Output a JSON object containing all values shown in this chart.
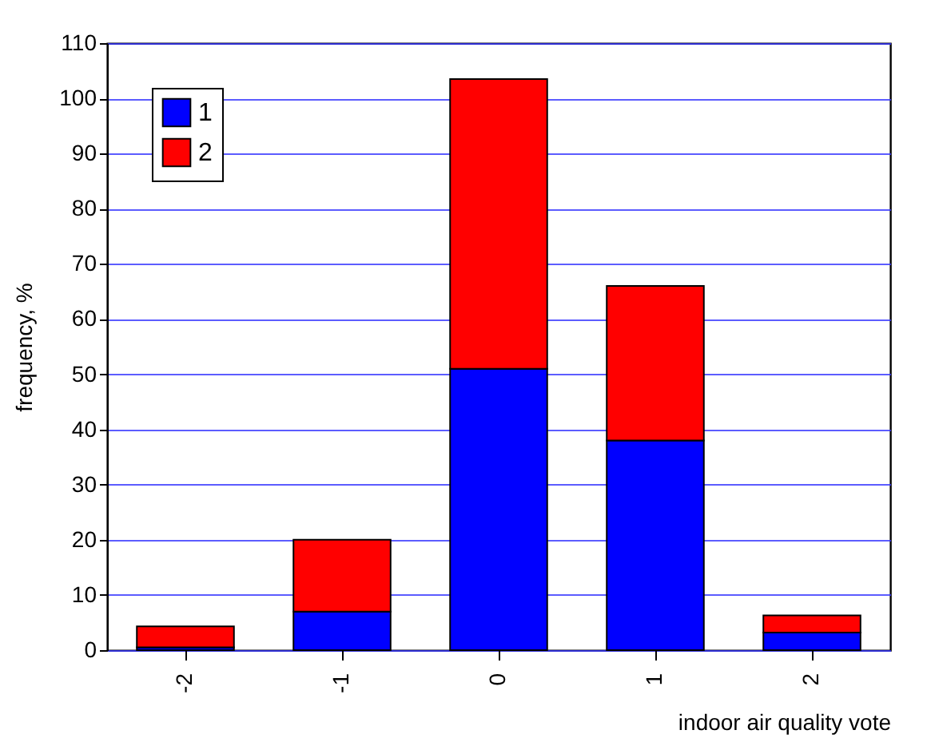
{
  "chart_data": {
    "type": "bar",
    "stacked": true,
    "xlabel": "indoor air quality vote",
    "ylabel": "frequency, %",
    "categories": [
      "-2",
      "-1",
      "0",
      "1",
      "2"
    ],
    "series": [
      {
        "name": "1",
        "color": "#0000ff",
        "values": [
          0.5,
          7,
          51,
          38,
          3.2
        ]
      },
      {
        "name": "2",
        "color": "#ff0000",
        "values": [
          3.8,
          13,
          52.5,
          28,
          3.1
        ]
      }
    ],
    "ylim": [
      0,
      110
    ],
    "yticks": [
      0,
      10,
      20,
      30,
      40,
      50,
      60,
      70,
      80,
      90,
      100,
      110
    ],
    "grid": "y",
    "legend": "top left"
  }
}
